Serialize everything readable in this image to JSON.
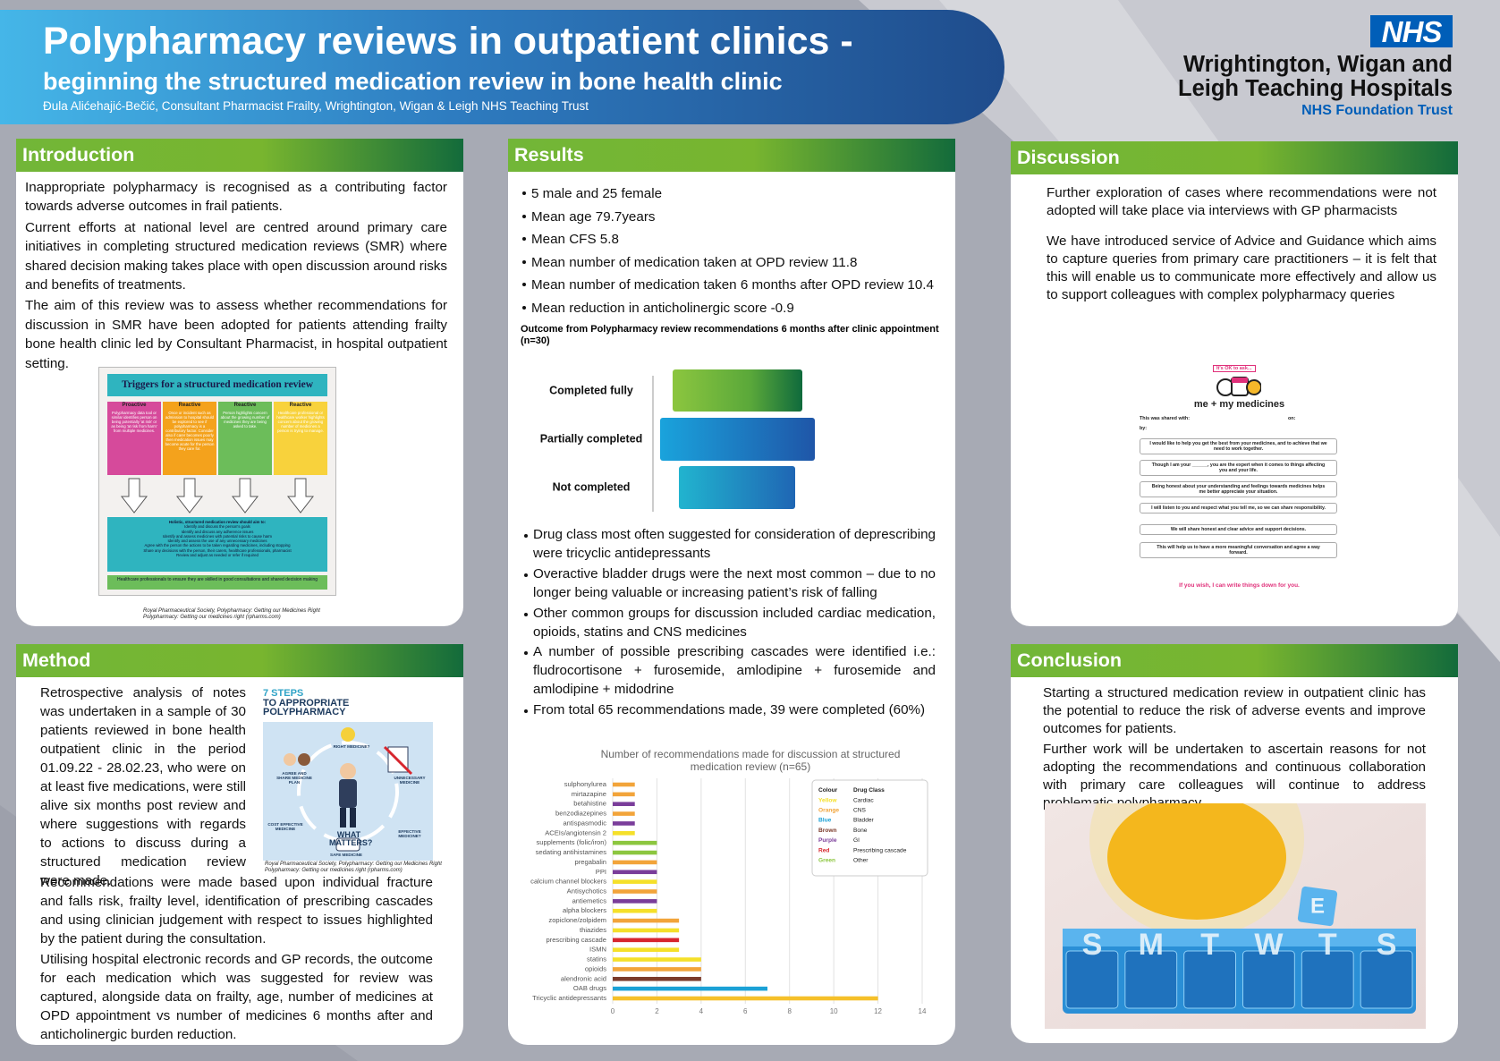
{
  "header": {
    "title": "Polypharmacy reviews in outpatient clinics -",
    "subtitle": "beginning the structured medication review in bone health clinic",
    "author": "Đula Alićehajić-Bečić, Consultant Pharmacist Frailty, Wrightington, Wigan & Leigh NHS Teaching Trust"
  },
  "logo": {
    "mark": "NHS",
    "org": [
      "Wrightington, Wigan and",
      "Leigh Teaching Hospitals"
    ],
    "trust": "NHS Foundation Trust"
  },
  "introduction": {
    "heading": "Introduction",
    "paragraphs": [
      "Inappropriate polypharmacy is recognised as a contributing factor towards adverse outcomes in frail patients.",
      "Current efforts at national level are centred around primary care initiatives in completing structured medication reviews (SMR) where shared decision making takes place with open discussion around risks and benefits of treatments.",
      "The aim of this review was to assess whether recommendations for discussion in SMR have been adopted for patients attending frailty bone health clinic led by Consultant Pharmacist, in hospital outpatient setting."
    ],
    "figure": {
      "title": "Triggers for a structured medication review",
      "columns": [
        {
          "heading": "Proactive",
          "text": "Polypharmacy data tool or similar identifies person on being potentially 'at risk' or as being 'at risk from harm' from multiple medicines."
        },
        {
          "heading": "Reactive",
          "text": "Once or incident such as admission to hospital should be explored to see if polypharmacy is a contributory factor. Consider also if carer becomes poorly then medication issues may become acute for the person they care for."
        },
        {
          "heading": "Reactive",
          "text": "Person highlights concern about the growing number of medicines they are being asked to take."
        },
        {
          "heading": "Reactive",
          "text": "Healthcare professional or healthcare worker highlights concern about the growing number of medicines a person is trying to manage."
        }
      ],
      "aims_title": "Holistic, structured medication review should aim to:",
      "aims": [
        "Identify and discuss the person's goals",
        "Identify and discuss any adherence issues",
        "Identify and assess medicines with potential risks to cause harm",
        "Identify and assess the use of any unnecessary medicines",
        "Agree with the person the actions to be taken regarding medicines, including stopping",
        "Share any decisions with the person, their carers, healthcare professionals, pharmacist",
        "Review and adjust as needed or refer if required"
      ],
      "footer": "Healthcare professionals to ensure they are skilled in good consultations and shared decision making"
    },
    "caption": [
      "Royal Pharmaceutical Society, Polypharmacy: Getting our Medicines Right",
      "Polypharmacy: Getting our medicines right (rpharms.com)"
    ]
  },
  "method": {
    "heading": "Method",
    "paragraphs": [
      "Retrospective analysis of notes was undertaken in a sample of 30 patients reviewed in bone health outpatient clinic in the period 01.09.22 - 28.02.23, who were on at least five medications, were still alive six months post review and where suggestions with regards to actions to discuss during a structured medication review were made.",
      "Recommendations were made based upon individual fracture and falls risk, frailty level, identification of prescribing cascades and using clinician judgement with respect to issues highlighted by the patient during the consultation.",
      "Utilising hospital electronic records and GP records, the outcome for each medication which was suggested for review was captured, alongside data on frailty, age, number of medicines at OPD appointment vs number of medicines 6 months after and anticholinergic burden reduction."
    ],
    "figure": {
      "title": [
        "7 STEPS",
        "TO APPROPRIATE",
        "POLYPHARMACY"
      ],
      "centre": [
        "WHAT",
        "MATTERS?"
      ],
      "steps": [
        "RIGHT MEDICINE?",
        "UNNECESSARY MEDICINE",
        "EFFECTIVE MEDICINE?",
        "SAFE MEDICINE",
        "COST EFFECTIVE MEDICINE",
        "AGREE AND SHARE MEDICINE PLAN"
      ]
    },
    "caption": [
      "Royal Pharmaceutical Society, Polypharmacy: Getting our Medicines Right",
      "Polypharmacy: Getting our medicines right (rpharms.com)"
    ]
  },
  "results": {
    "heading": "Results",
    "bullets_top": [
      "5 male and 25 female",
      "Mean age 79.7years",
      "Mean CFS 5.8",
      "Mean number of medication taken at OPD review 11.8",
      "Mean number of medication taken 6 months after OPD review 10.4",
      "Mean reduction in anticholinergic score -0.9"
    ],
    "funnel": {
      "title": "Outcome from Polypharmacy review recommendations 6 months after clinic appointment (n=30)",
      "labels": [
        "Completed fully",
        "Partially completed",
        "Not completed"
      ]
    },
    "bullets_bottom": [
      "Drug class most often suggested for consideration of deprescribing were tricyclic antidepressants",
      "Overactive  bladder drugs were the next most common – due to no longer being valuable or increasing patient’s risk of falling",
      "Other common groups for discussion included cardiac medication, opioids, statins and CNS medicines",
      "A number of possible prescribing cascades were identified i.e.: fludrocortisone + furosemide, amlodipine + furosemide and amlodipine + midodrine",
      "From total 65 recommendations made, 39 were completed (60%)"
    ]
  },
  "chart_data": {
    "type": "bar",
    "orientation": "horizontal",
    "title": "Number of recommendations made for discussion at structured medication review (n=65)",
    "categories": [
      "sulphonylurea",
      "mirtazapine",
      "betahistine",
      "benzodiazepines",
      "antispasmodic",
      "ACEIs/angiotensin 2",
      "supplements (folic/iron)",
      "sedating antihistamines",
      "pregabalin",
      "PPI",
      "calcium channel blockers",
      "Antisychotics",
      "antiemetics",
      "alpha blockers",
      "zopiclone/zolpidem",
      "thiazides",
      "prescribing cascade",
      "ISMN",
      "statins",
      "opioids",
      "alendronic acid",
      "OAB drugs",
      "Tricyclic antidepressants"
    ],
    "values": [
      1,
      1,
      1,
      1,
      1,
      1,
      2,
      2,
      2,
      2,
      2,
      2,
      2,
      2,
      3,
      3,
      3,
      3,
      4,
      4,
      4,
      7,
      12
    ],
    "colors": [
      "#f2a43a",
      "#f2a43a",
      "#7a3d9a",
      "#f2a43a",
      "#7a3d9a",
      "#f5e02a",
      "#8cc63f",
      "#8cc63f",
      "#f2a43a",
      "#7a3d9a",
      "#f5e02a",
      "#f2a43a",
      "#7a3d9a",
      "#f5e02a",
      "#f2a43a",
      "#f5e02a",
      "#d7262e",
      "#f5e02a",
      "#f5e02a",
      "#f2a43a",
      "#7b3a2a",
      "#1ba1d6",
      "#f5c02a"
    ],
    "xlim": [
      0,
      14
    ],
    "xticks": [
      0,
      2,
      4,
      6,
      8,
      10,
      12,
      14
    ],
    "grid": true,
    "legend": {
      "position": "upper right",
      "headers": [
        "Colour",
        "Drug Class"
      ],
      "entries": [
        {
          "name": "Yellow",
          "class": "Cardiac",
          "color": "#f5e02a"
        },
        {
          "name": "Orange",
          "class": "CNS",
          "color": "#f2a43a"
        },
        {
          "name": "Blue",
          "class": "Bladder",
          "color": "#1ba1d6"
        },
        {
          "name": "Brown",
          "class": "Bone",
          "color": "#7b3a2a"
        },
        {
          "name": "Purple",
          "class": "GI",
          "color": "#7a3d9a"
        },
        {
          "name": "Red",
          "class": "Prescribing cascade",
          "color": "#d7262e"
        },
        {
          "name": "Green",
          "class": "Other",
          "color": "#8cc63f"
        }
      ]
    }
  },
  "discussion": {
    "heading": "Discussion",
    "paragraphs": [
      "Further exploration of cases where recommendations were not adopted will take place via interviews with GP pharmacists",
      "We have introduced service of  Advice and Guidance which aims to capture queries from primary care practitioners – it is felt that this will enable us to communicate more effectively and allow us to support colleagues with complex polypharmacy queries"
    ],
    "leaflet": {
      "badge": "It's OK to ask...",
      "title": "me + my medicines",
      "shared_with": "This was shared with:",
      "on": "on:",
      "by": "by:",
      "statements": [
        "I would like to help you get the best from your medicines, and to achieve that we need to work together.",
        "Though I am your ______, you are the expert when it comes to things affecting you and your life.",
        "Being honest about your understanding and feelings towards medicines helps me better appreciate your situation.",
        "I will listen to you and respect what you tell me, so we can share responsibility.",
        "We will share honest and clear advice and support decisions.",
        "This will help us to have a more meaningful conversation and agree a way forward."
      ],
      "footer": "If you wish, I can write things down for you."
    }
  },
  "conclusion": {
    "heading": "Conclusion",
    "paragraphs": [
      "Starting a structured medication review in outpatient clinic has the potential to reduce the risk of adverse events and improve outcomes for patients.",
      "Further work will be undertaken to ascertain reasons for not adopting the recommendations and continuous collaboration with primary care colleagues will continue to address problematic polypharmacy."
    ],
    "photo": {
      "days": [
        "S",
        "M",
        "T",
        "W",
        "T",
        "S"
      ],
      "lid": "E"
    }
  }
}
